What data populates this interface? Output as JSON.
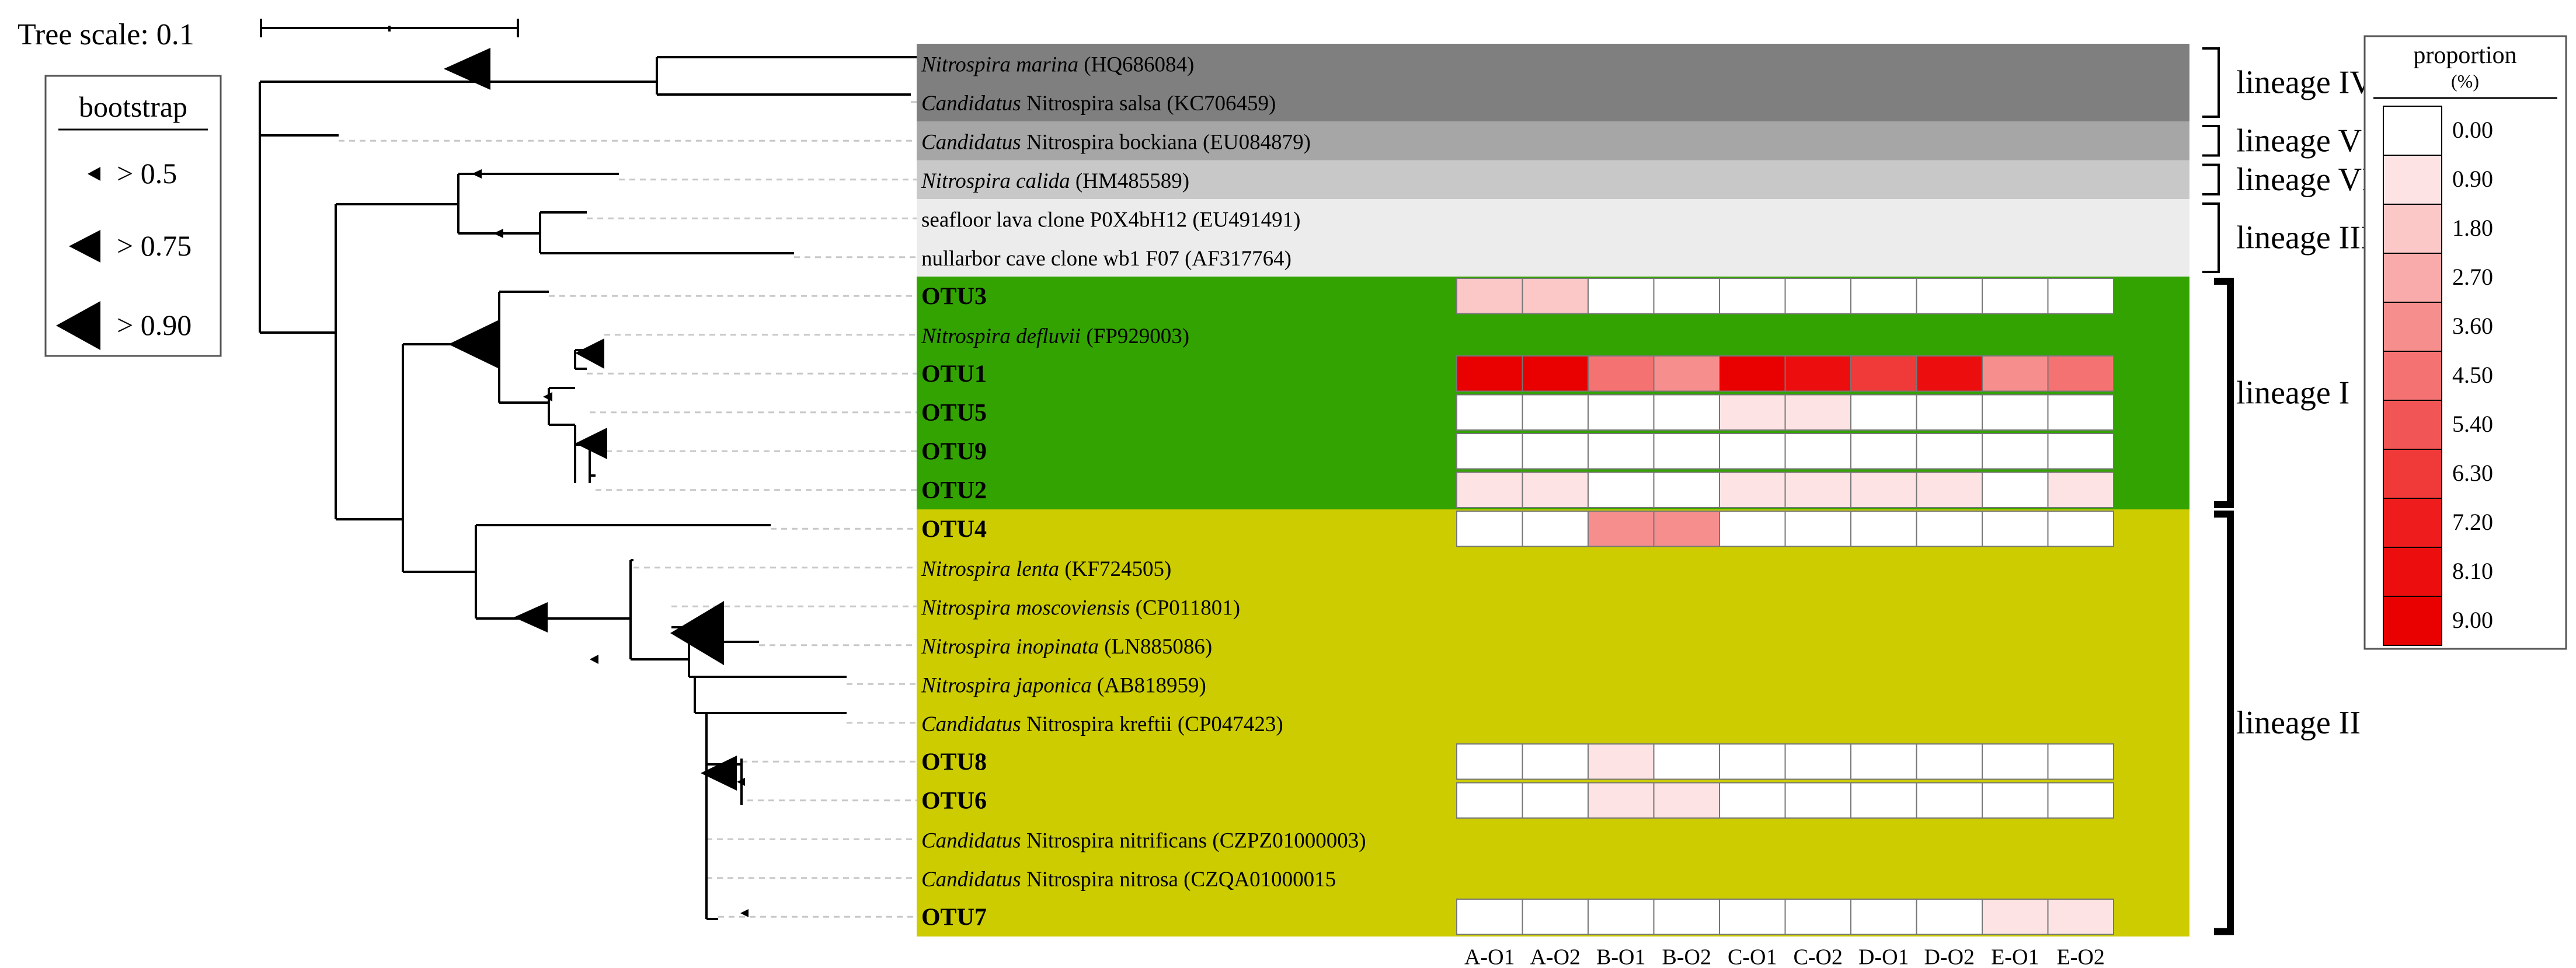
{
  "tree_scale": {
    "label": "Tree scale: 0.1"
  },
  "bootstrap_legend": {
    "title": "bootstrap",
    "items": [
      {
        "label": "> 0.5",
        "size": "small"
      },
      {
        "label": "> 0.75",
        "size": "medium"
      },
      {
        "label": "> 0.90",
        "size": "large"
      }
    ]
  },
  "taxa": [
    {
      "italic": "Nitrospira marina",
      "plain": " (HQ686084)",
      "bold": false,
      "band": "#7f7f7f"
    },
    {
      "italic": "Candidatus",
      "plain": " Nitrospira salsa (KC706459)",
      "bold": false,
      "band": "#7f7f7f"
    },
    {
      "italic": "Candidatus",
      "plain": " Nitrospira bockiana (EU084879)",
      "bold": false,
      "band": "#a6a6a6"
    },
    {
      "italic": "Nitrospira calida",
      "plain": " (HM485589)",
      "bold": false,
      "band": "#c8c8c8"
    },
    {
      "italic": "",
      "plain": "seafloor lava clone P0X4bH12 (EU491491)",
      "bold": false,
      "band": "#ececec"
    },
    {
      "italic": "",
      "plain": "nullarbor cave clone wb1 F07 (AF317764)",
      "bold": false,
      "band": "#ececec"
    },
    {
      "italic": "",
      "plain": "OTU3",
      "bold": true,
      "band": "#33a302"
    },
    {
      "italic": "Nitrospira defluvii",
      "plain": " (FP929003)",
      "bold": false,
      "band": "#33a302"
    },
    {
      "italic": "",
      "plain": "OTU1",
      "bold": true,
      "band": "#33a302"
    },
    {
      "italic": "",
      "plain": "OTU5",
      "bold": true,
      "band": "#33a302"
    },
    {
      "italic": "",
      "plain": "OTU9",
      "bold": true,
      "band": "#33a302"
    },
    {
      "italic": "",
      "plain": "OTU2",
      "bold": true,
      "band": "#33a302"
    },
    {
      "italic": "",
      "plain": "OTU4",
      "bold": true,
      "band": "#cccc00"
    },
    {
      "italic": "Nitrospira lenta",
      "plain": " (KF724505)",
      "bold": false,
      "band": "#cccc00"
    },
    {
      "italic": "Nitrospira moscoviensis",
      "plain": " (CP011801)",
      "bold": false,
      "band": "#cccc00"
    },
    {
      "italic": "Nitrospira inopinata",
      "plain": " (LN885086)",
      "bold": false,
      "band": "#cccc00"
    },
    {
      "italic": "Nitrospira japonica",
      "plain": " (AB818959)",
      "bold": false,
      "band": "#cccc00"
    },
    {
      "italic": "Candidatus",
      "plain": " Nitrospira kreftii (CP047423)",
      "bold": false,
      "band": "#cccc00"
    },
    {
      "italic": "",
      "plain": "OTU8",
      "bold": true,
      "band": "#cccc00"
    },
    {
      "italic": "",
      "plain": "OTU6",
      "bold": true,
      "band": "#cccc00"
    },
    {
      "italic": "Candidatus",
      "plain": " Nitrospira nitrificans (CZPZ01000003)",
      "bold": false,
      "band": "#cccc00"
    },
    {
      "italic": "Candidatus",
      "plain": " Nitrospira nitrosa (CZQA01000015",
      "bold": false,
      "band": "#cccc00"
    },
    {
      "italic": "",
      "plain": "OTU7",
      "bold": true,
      "band": "#cccc00"
    }
  ],
  "lineages": [
    {
      "label": "lineage IV",
      "first_row": 0,
      "last_row": 1,
      "thick": false
    },
    {
      "label": "lineage V",
      "first_row": 2,
      "last_row": 2,
      "thick": false
    },
    {
      "label": "lineage VI",
      "first_row": 3,
      "last_row": 3,
      "thick": false
    },
    {
      "label": "lineage III",
      "first_row": 4,
      "last_row": 5,
      "thick": false
    },
    {
      "label": "lineage I",
      "first_row": 6,
      "last_row": 11,
      "thick": true
    },
    {
      "label": "lineage II",
      "first_row": 12,
      "last_row": 22,
      "thick": true
    }
  ],
  "heatmap": {
    "columns": [
      "A-O1",
      "A-O2",
      "B-O1",
      "B-O2",
      "C-O1",
      "C-O2",
      "D-O1",
      "D-O2",
      "E-O1",
      "E-O2"
    ],
    "max": 9.0,
    "rows": [
      {
        "row": 6,
        "label": "OTU3",
        "values": [
          1.8,
          1.8,
          0,
          0,
          0,
          0,
          0,
          0,
          0,
          0
        ]
      },
      {
        "row": 8,
        "label": "OTU1",
        "values": [
          9.0,
          9.0,
          4.5,
          3.6,
          9.0,
          8.1,
          6.3,
          8.1,
          3.6,
          4.5
        ]
      },
      {
        "row": 9,
        "label": "OTU5",
        "values": [
          0,
          0,
          0,
          0,
          0.9,
          0.9,
          0,
          0,
          0,
          0
        ]
      },
      {
        "row": 10,
        "label": "OTU9",
        "values": [
          0,
          0,
          0,
          0,
          0,
          0,
          0,
          0,
          0,
          0
        ]
      },
      {
        "row": 11,
        "label": "OTU2",
        "values": [
          0.9,
          0.9,
          0,
          0,
          0.9,
          0.9,
          0.9,
          0.9,
          0,
          0.9
        ]
      },
      {
        "row": 12,
        "label": "OTU4",
        "values": [
          0,
          0,
          3.6,
          3.6,
          0,
          0,
          0,
          0,
          0,
          0
        ]
      },
      {
        "row": 18,
        "label": "OTU8",
        "values": [
          0,
          0,
          0.9,
          0,
          0,
          0,
          0,
          0,
          0,
          0
        ]
      },
      {
        "row": 19,
        "label": "OTU6",
        "values": [
          0,
          0,
          0.9,
          0.9,
          0,
          0,
          0,
          0,
          0,
          0
        ]
      },
      {
        "row": 22,
        "label": "OTU7",
        "values": [
          0,
          0,
          0,
          0,
          0,
          0,
          0,
          0,
          0.9,
          0.9
        ]
      }
    ]
  },
  "proportion_legend": {
    "title": "proportion",
    "unit": "(%)",
    "levels": [
      {
        "label": "0.00",
        "color": "#ffffff"
      },
      {
        "label": "0.90",
        "color": "#fde3e3"
      },
      {
        "label": "1.80",
        "color": "#fbc7c7"
      },
      {
        "label": "2.70",
        "color": "#f9aaaa"
      },
      {
        "label": "3.60",
        "color": "#f78e8e"
      },
      {
        "label": "4.50",
        "color": "#f47272"
      },
      {
        "label": "5.40",
        "color": "#f25555"
      },
      {
        "label": "6.30",
        "color": "#f03939"
      },
      {
        "label": "7.20",
        "color": "#ee1c1c"
      },
      {
        "label": "8.10",
        "color": "#ec0e0e"
      },
      {
        "label": "9.00",
        "color": "#e90000"
      }
    ]
  }
}
